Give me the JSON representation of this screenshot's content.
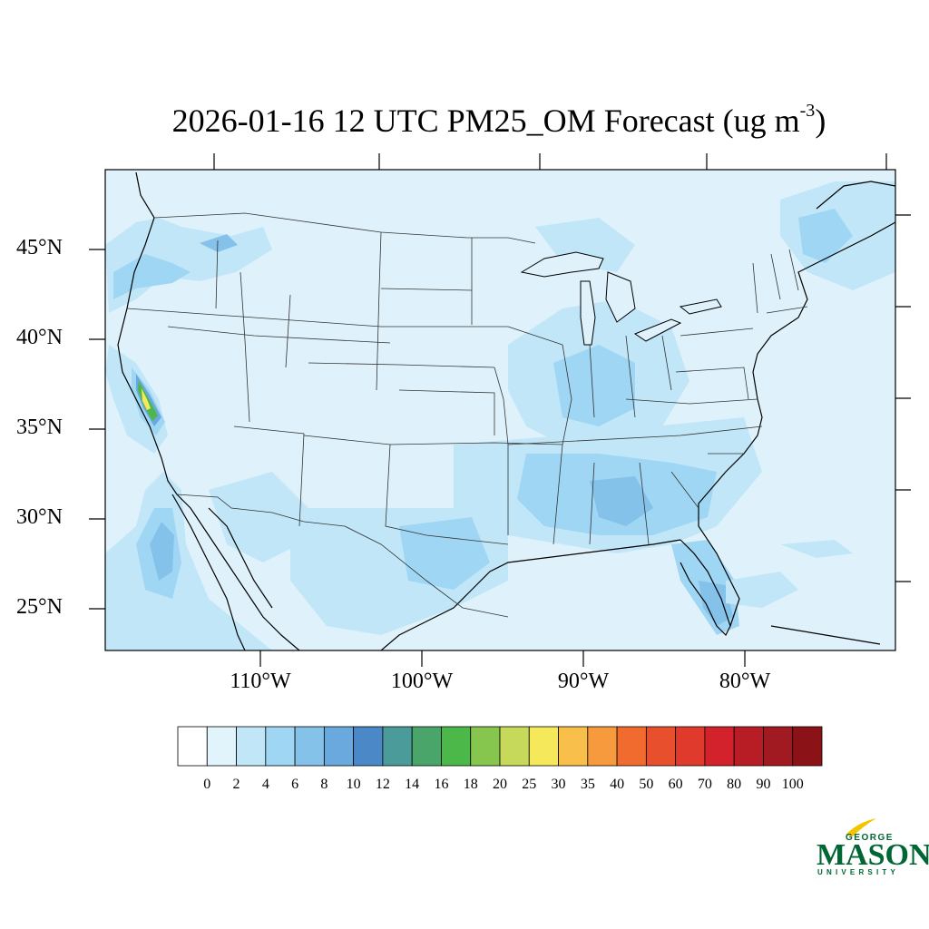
{
  "title": {
    "main": "2026-01-16 12 UTC PM25_OM Forecast (ug m",
    "exponent": "-3",
    "close": ")"
  },
  "lat_labels": [
    "45°N",
    "40°N",
    "35°N",
    "30°N",
    "25°N"
  ],
  "lon_labels": [
    "110°W",
    "100°W",
    "90°W",
    "80°W"
  ],
  "colorbar": {
    "labels": [
      "0",
      "2",
      "4",
      "6",
      "8",
      "10",
      "12",
      "14",
      "16",
      "18",
      "20",
      "25",
      "30",
      "35",
      "40",
      "50",
      "60",
      "70",
      "80",
      "90",
      "100"
    ],
    "colors": [
      "#ffffff",
      "#e1f3fb",
      "#c0e6f8",
      "#9fd6f3",
      "#84c2ea",
      "#69a9dd",
      "#4a88c8",
      "#4b9b9b",
      "#4aa56b",
      "#4db84a",
      "#86c64f",
      "#c6d95a",
      "#f5e85a",
      "#f8c04b",
      "#f7993d",
      "#f26b2e",
      "#e8502d",
      "#df3a2c",
      "#d3222c",
      "#b81c25",
      "#a11921",
      "#8b1317"
    ]
  },
  "colors": {
    "background": "#dff2fb",
    "light": "#c0e6f8",
    "medium": "#9fd6f3",
    "dark": "#84c2ea",
    "darker": "#69a9dd",
    "green": "#4db84a",
    "yellow": "#f5e85a",
    "border": "#444444"
  },
  "logo": {
    "top": "GEORGE",
    "main": "MASON",
    "bottom": "UNIVERSITY"
  }
}
